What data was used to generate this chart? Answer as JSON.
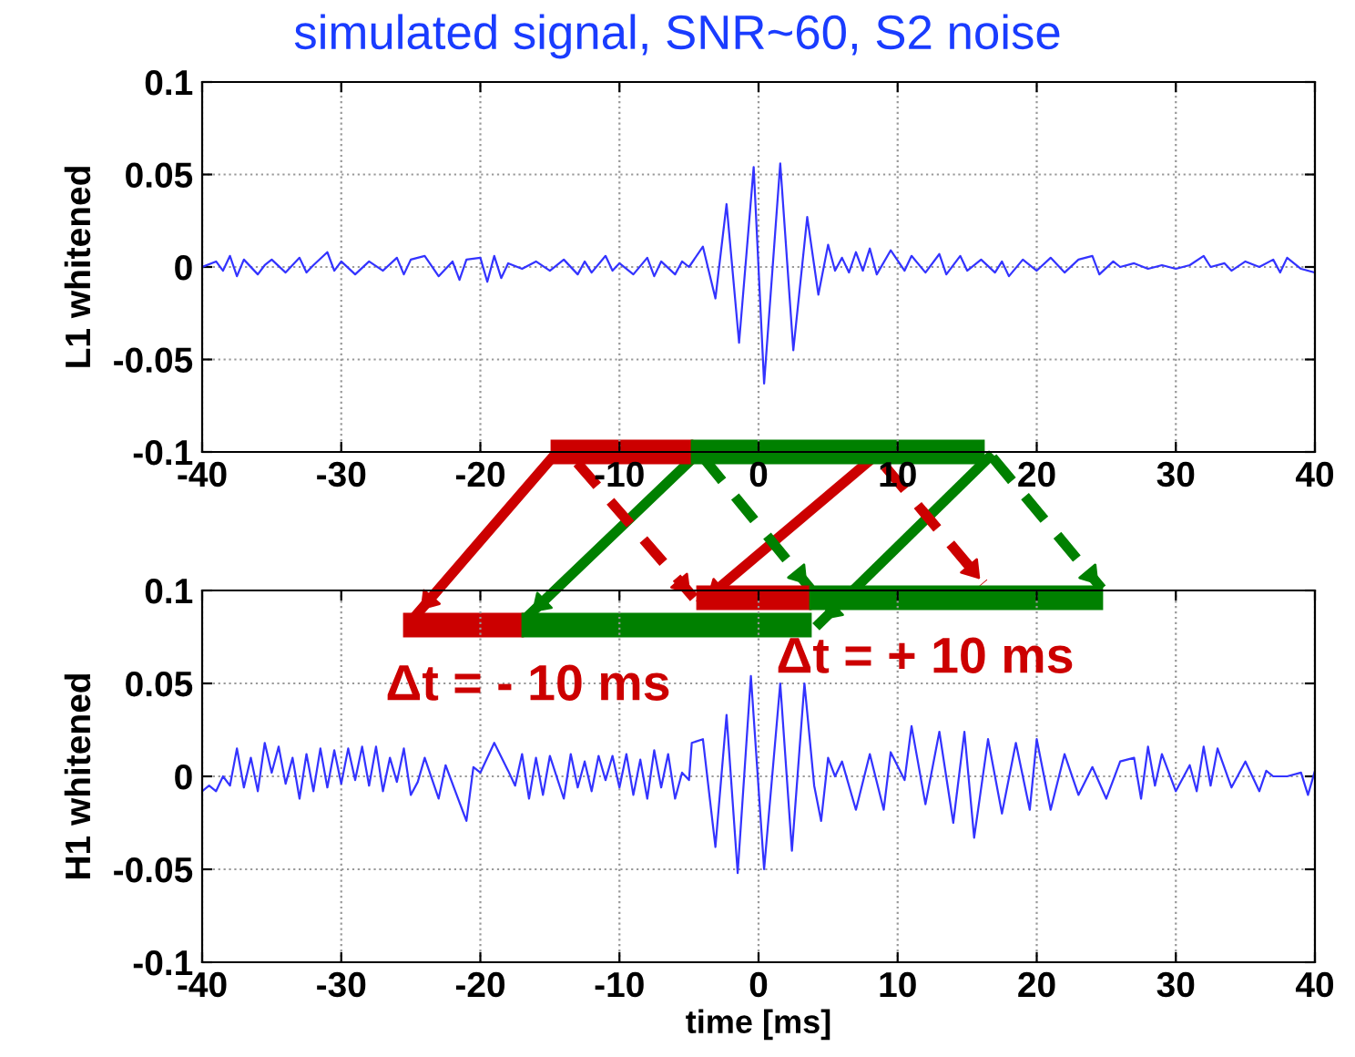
{
  "chart_data": [
    {
      "type": "line",
      "title": "simulated signal, SNR~60, S2 noise",
      "ylabel": "L1 whitened",
      "grid": true,
      "xlim": [
        -40,
        40
      ],
      "xticks": [
        -40,
        -30,
        -20,
        -10,
        0,
        10,
        20,
        30,
        40
      ],
      "ylim": [
        -0.1,
        0.1
      ],
      "yticks": [
        -0.1,
        -0.05,
        0,
        0.05,
        0.1
      ],
      "series": [
        {
          "color": "#3333ff",
          "x": [
            -40,
            -39,
            -38.5,
            -38,
            -37.5,
            -37,
            -36,
            -35.5,
            -35,
            -34,
            -33,
            -32.5,
            -32,
            -31,
            -30.5,
            -30,
            -29,
            -28,
            -27,
            -26,
            -25.5,
            -25,
            -24,
            -23,
            -22,
            -21.5,
            -21,
            -20,
            -19.5,
            -19,
            -18.5,
            -18,
            -17,
            -16,
            -15,
            -14,
            -13,
            -12.5,
            -12,
            -11,
            -10.5,
            -10,
            -9,
            -8,
            -7.5,
            -7,
            -6,
            -5.5,
            -5,
            -4,
            -3.1,
            -2.3,
            -1.4,
            -0.35,
            0.4,
            1.56,
            2.5,
            3.5,
            4.3,
            5,
            5.5,
            6,
            6.5,
            7,
            7.5,
            8,
            8.5,
            9.5,
            10.5,
            11,
            12,
            13,
            13.5,
            14.5,
            15,
            16,
            17,
            17.5,
            18,
            19,
            20,
            21,
            22,
            23,
            24,
            24.5,
            25.5,
            26,
            27,
            28,
            29,
            30,
            31,
            32,
            32.5,
            33.5,
            34,
            35,
            36,
            37,
            37.5,
            38,
            39,
            40
          ],
          "values": [
            0.0,
            0.003,
            -0.002,
            0.006,
            -0.005,
            0.004,
            -0.004,
            0.001,
            0.004,
            -0.003,
            0.005,
            -0.003,
            0.001,
            0.008,
            -0.002,
            0.003,
            -0.004,
            0.003,
            -0.002,
            0.005,
            -0.004,
            0.004,
            0.006,
            -0.005,
            0.003,
            -0.007,
            0.004,
            0.005,
            -0.008,
            0.006,
            -0.006,
            0.002,
            -0.001,
            0.003,
            -0.002,
            0.004,
            -0.004,
            0.003,
            -0.003,
            0.006,
            -0.002,
            0.002,
            -0.004,
            0.005,
            -0.005,
            0.003,
            -0.004,
            0.003,
            0.0,
            0.011,
            -0.017,
            0.034,
            -0.041,
            0.054,
            -0.063,
            0.056,
            -0.045,
            0.027,
            -0.015,
            0.012,
            -0.002,
            0.005,
            -0.003,
            0.008,
            -0.002,
            0.01,
            -0.004,
            0.009,
            -0.002,
            0.006,
            -0.003,
            0.007,
            -0.004,
            0.006,
            -0.002,
            0.004,
            -0.003,
            0.003,
            -0.005,
            0.004,
            -0.002,
            0.005,
            -0.003,
            0.004,
            0.006,
            -0.004,
            0.003,
            0.0,
            0.002,
            -0.001,
            0.001,
            -0.001,
            0.001,
            0.006,
            0.0,
            0.002,
            -0.002,
            0.003,
            0.0,
            0.004,
            -0.003,
            0.005,
            -0.001,
            -0.003
          ]
        }
      ]
    },
    {
      "type": "line",
      "xlabel": "time [ms]",
      "ylabel": "H1 whitened",
      "grid": true,
      "xlim": [
        -40,
        40
      ],
      "xticks": [
        -40,
        -30,
        -20,
        -10,
        0,
        10,
        20,
        30,
        40
      ],
      "ylim": [
        -0.1,
        0.1
      ],
      "yticks": [
        -0.1,
        -0.05,
        0,
        0.05,
        0.1
      ],
      "annotations": [
        "Δt = - 10 ms",
        "Δt = + 10 ms"
      ],
      "series": [
        {
          "color": "#3333ff",
          "x": [
            -40,
            -39.5,
            -39,
            -38.5,
            -38,
            -37.5,
            -37,
            -36.5,
            -36,
            -35.5,
            -35,
            -34.5,
            -34,
            -33.5,
            -33,
            -32.5,
            -32,
            -31.5,
            -31,
            -30.5,
            -30,
            -29.5,
            -29,
            -28.5,
            -28,
            -27.5,
            -27,
            -26.5,
            -26,
            -25.5,
            -25,
            -24.5,
            -24,
            -23,
            -22.5,
            -21.8,
            -21,
            -20.5,
            -20,
            -19,
            -18,
            -17.5,
            -17,
            -16.5,
            -16,
            -15.5,
            -15,
            -14,
            -13.5,
            -13,
            -12.5,
            -12,
            -11.5,
            -11,
            -10.5,
            -10,
            -9.5,
            -9,
            -8.5,
            -8,
            -7.5,
            -7,
            -6.5,
            -6,
            -5.5,
            -5,
            -4.8,
            -4.0,
            -3.1,
            -2.3,
            -1.5,
            -0.55,
            0.4,
            1.56,
            2.4,
            3.3,
            4.0,
            4.5,
            5,
            5.5,
            6,
            7,
            8,
            9,
            9.5,
            10.5,
            11,
            12,
            13,
            14,
            14.8,
            15.5,
            16.5,
            17.5,
            18.5,
            19.5,
            20,
            21,
            22,
            23,
            24,
            25,
            26,
            27,
            27.5,
            28,
            28.5,
            29,
            30,
            31,
            31.5,
            32,
            32.5,
            33,
            34,
            35,
            36,
            36.5,
            37,
            38,
            39,
            39.5,
            40
          ],
          "values": [
            -0.008,
            -0.005,
            -0.008,
            0.0,
            -0.005,
            0.015,
            -0.006,
            0.01,
            -0.008,
            0.018,
            0.002,
            0.016,
            -0.004,
            0.01,
            -0.012,
            0.012,
            -0.008,
            0.015,
            -0.006,
            0.014,
            -0.004,
            0.015,
            -0.002,
            0.016,
            -0.005,
            0.016,
            -0.008,
            0.01,
            -0.003,
            0.015,
            -0.01,
            -0.003,
            0.01,
            -0.012,
            0.006,
            -0.008,
            -0.024,
            0.005,
            0.002,
            0.018,
            0.003,
            -0.005,
            0.012,
            -0.012,
            0.01,
            -0.01,
            0.011,
            -0.012,
            0.012,
            -0.006,
            0.008,
            -0.008,
            0.011,
            -0.002,
            0.011,
            -0.006,
            0.012,
            -0.01,
            0.009,
            -0.012,
            0.014,
            -0.006,
            0.012,
            -0.012,
            0.002,
            -0.002,
            0.018,
            0.02,
            -0.038,
            0.033,
            -0.052,
            0.054,
            -0.05,
            0.05,
            -0.04,
            0.05,
            -0.005,
            -0.024,
            0.01,
            0.0,
            0.008,
            -0.018,
            0.012,
            -0.018,
            0.013,
            -0.002,
            0.027,
            -0.015,
            0.024,
            -0.025,
            0.024,
            -0.033,
            0.02,
            -0.02,
            0.018,
            -0.018,
            0.02,
            -0.018,
            0.012,
            -0.01,
            0.005,
            -0.012,
            0.008,
            0.01,
            -0.012,
            0.016,
            -0.005,
            0.012,
            -0.008,
            0.006,
            -0.008,
            0.016,
            -0.005,
            0.015,
            -0.006,
            0.008,
            -0.008,
            0.003,
            0.0,
            0.0,
            0.002,
            -0.01,
            0.003
          ]
        }
      ]
    }
  ]
}
